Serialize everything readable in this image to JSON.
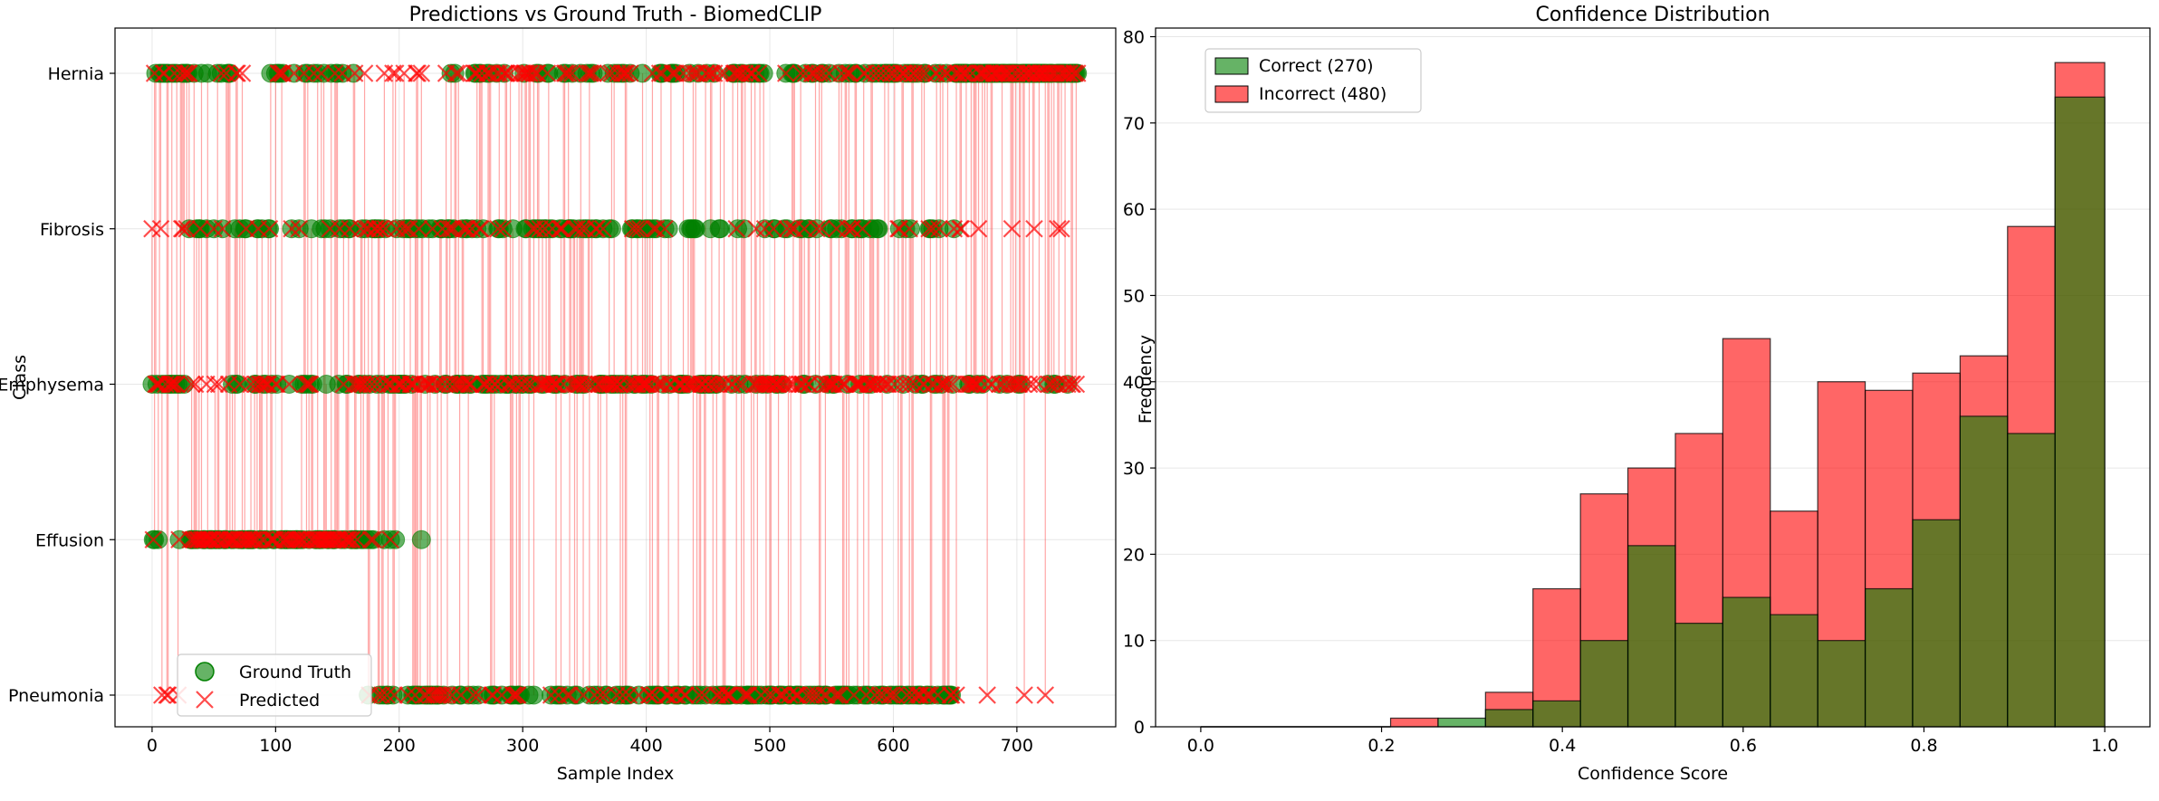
{
  "chart_data": [
    {
      "type": "scatter",
      "title": "Predictions vs Ground Truth - BiomedCLIP",
      "xlabel": "Sample Index",
      "ylabel": "Class",
      "xlim": [
        -30,
        780
      ],
      "x_ticks": [
        0,
        100,
        200,
        300,
        400,
        500,
        600,
        700
      ],
      "classes": [
        "Pneumonia",
        "Effusion",
        "Emphysema",
        "Fibrosis",
        "Hernia"
      ],
      "grid": true,
      "legend": "lower-left",
      "series": [
        {
          "name": "Ground Truth",
          "marker": "circle",
          "color": "#008000"
        },
        {
          "name": "Predicted",
          "marker": "x",
          "color": "#ff0000"
        }
      ],
      "n_samples": 750
    },
    {
      "type": "bar",
      "subtype": "histogram",
      "title": "Confidence Distribution",
      "xlabel": "Confidence Score",
      "ylabel": "Frequency",
      "xlim": [
        -0.05,
        1.05
      ],
      "ylim": [
        0,
        81
      ],
      "x_ticks": [
        0.0,
        0.2,
        0.4,
        0.6,
        0.8,
        1.0
      ],
      "y_ticks": [
        0,
        10,
        20,
        30,
        40,
        50,
        60,
        70,
        80
      ],
      "grid": true,
      "legend": "top-left",
      "bin_edges": [
        0.21,
        0.2625,
        0.315,
        0.3675,
        0.42,
        0.4725,
        0.525,
        0.5775,
        0.63,
        0.6825,
        0.735,
        0.7875,
        0.84,
        0.8925,
        0.945,
        1.0
      ],
      "series": [
        {
          "name": "Correct (270)",
          "color": "#008000",
          "values": [
            0,
            1,
            2,
            3,
            10,
            21,
            12,
            15,
            13,
            10,
            16,
            24,
            36,
            34,
            73
          ]
        },
        {
          "name": "Incorrect (480)",
          "color": "#ff0000",
          "values": [
            1,
            0,
            4,
            16,
            27,
            30,
            34,
            45,
            25,
            40,
            39,
            41,
            43,
            58,
            77
          ]
        }
      ]
    }
  ]
}
